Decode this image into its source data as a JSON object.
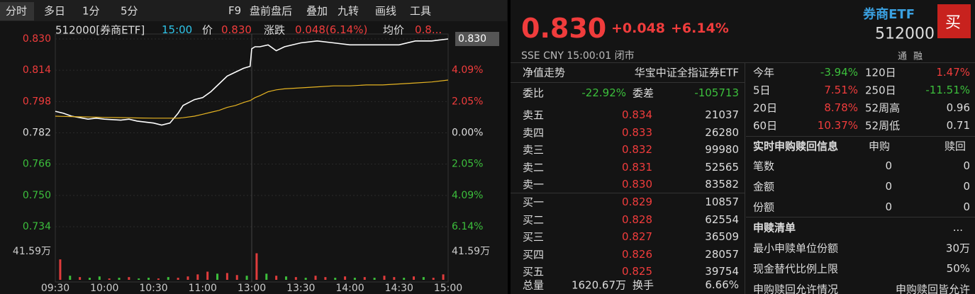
{
  "toolbar": {
    "tabs": [
      "分时",
      "多日",
      "1分",
      "5分"
    ],
    "tools": [
      "F9",
      "盘前盘后",
      "叠加",
      "九转",
      "画线",
      "工具"
    ]
  },
  "legend": {
    "code": "512000[券商ETF]",
    "time": "15:00",
    "price_label": "价",
    "price": "0.830",
    "change_label": "涨跌",
    "change": "0.048(6.14%)",
    "avg_label": "均价",
    "avg": "0.8..."
  },
  "chart_data": {
    "type": "line",
    "last_price_tag": "0.830",
    "x": [
      0,
      5,
      10,
      20,
      25,
      30,
      40,
      45,
      50,
      60,
      65,
      70,
      75,
      78,
      85,
      90,
      95,
      100,
      105,
      110,
      115,
      119,
      120,
      122,
      125,
      130,
      135,
      140,
      150,
      160,
      170,
      180,
      190,
      200,
      210,
      220,
      230,
      240
    ],
    "series": [
      {
        "color": "#ffffff",
        "values": [
          0.793,
          0.792,
          0.7905,
          0.789,
          0.7895,
          0.789,
          0.7885,
          0.789,
          0.788,
          0.787,
          0.786,
          0.787,
          0.792,
          0.796,
          0.799,
          0.8,
          0.803,
          0.807,
          0.811,
          0.813,
          0.815,
          0.816,
          0.825,
          0.826,
          0.826,
          0.827,
          0.824,
          0.826,
          0.828,
          0.829,
          0.828,
          0.827,
          0.827,
          0.827,
          0.827,
          0.829,
          0.829,
          0.83
        ]
      },
      {
        "color": "#e6b422",
        "values": [
          0.7905,
          0.7904,
          0.7903,
          0.7901,
          0.79,
          0.7899,
          0.7898,
          0.7897,
          0.7896,
          0.7895,
          0.7895,
          0.7895,
          0.7895,
          0.7897,
          0.7905,
          0.7915,
          0.7925,
          0.7935,
          0.795,
          0.796,
          0.7975,
          0.7985,
          0.799,
          0.8,
          0.801,
          0.803,
          0.804,
          0.8045,
          0.805,
          0.8055,
          0.806,
          0.806,
          0.8065,
          0.8065,
          0.807,
          0.8075,
          0.808,
          0.809
        ]
      }
    ],
    "xlim": [
      0,
      240
    ],
    "xticks": [
      {
        "value": 0,
        "label": "09:30"
      },
      {
        "value": 30,
        "label": "10:00"
      },
      {
        "value": 60,
        "label": "10:30"
      },
      {
        "value": 90,
        "label": "11:00"
      },
      {
        "value": 120,
        "label": "13:00"
      },
      {
        "value": 150,
        "label": "13:30"
      },
      {
        "value": 180,
        "label": "14:00"
      },
      {
        "value": 210,
        "label": "14:30"
      },
      {
        "value": 240,
        "label": "15:00"
      }
    ],
    "ylim": [
      0.734,
      0.83
    ],
    "yticks": [
      {
        "value": 0.83,
        "label": "0.830"
      },
      0.814,
      0.798,
      0.782,
      0.766,
      {
        "value": 0.75,
        "label": "0.750"
      },
      0.734
    ],
    "y2lim": [
      -6.14,
      6.14
    ],
    "y2ticks": [
      {
        "value": 4.09,
        "label": "4.09%"
      },
      {
        "value": 2.05,
        "label": "2.05%"
      },
      {
        "value": 0,
        "label": "0.00%"
      },
      {
        "value": -2.05,
        "label": "2.05%"
      },
      {
        "value": -4.09,
        "label": "4.09%"
      },
      {
        "value": -6.14,
        "label": "6.14%"
      }
    ],
    "volume": {
      "ylim": [
        0,
        41.59
      ],
      "yticks": [
        {
          "value": 41.59,
          "label": "41.59万"
        }
      ],
      "values": [
        30,
        6,
        4,
        3,
        5,
        2,
        3,
        4,
        2,
        3,
        2,
        4,
        3,
        5,
        8,
        12,
        9,
        10,
        7,
        6,
        39,
        9,
        6,
        5,
        4,
        3,
        6,
        4,
        3,
        5,
        3,
        4,
        3,
        6,
        4,
        3,
        5,
        4,
        3,
        8
      ],
      "colors": [
        "#e03c3c",
        "#3cbf3c",
        "#e03c3c",
        "#3cbf3c",
        "#3cbf3c",
        "#e03c3c",
        "#3cbf3c",
        "#e03c3c",
        "#3cbf3c",
        "#3cbf3c",
        "#e03c3c",
        "#3cbf3c",
        "#e03c3c",
        "#e03c3c",
        "#e03c3c",
        "#e03c3c",
        "#3cbf3c",
        "#e03c3c",
        "#e03c3c",
        "#3cbf3c",
        "#e03c3c",
        "#3cbf3c",
        "#e03c3c",
        "#3cbf3c",
        "#e03c3c",
        "#3cbf3c",
        "#e03c3c",
        "#e03c3c",
        "#3cbf3c",
        "#e03c3c",
        "#3cbf3c",
        "#e03c3c",
        "#3cbf3c",
        "#e03c3c",
        "#e03c3c",
        "#3cbf3c",
        "#e03c3c",
        "#3cbf3c",
        "#e03c3c",
        "#e03c3c"
      ]
    }
  },
  "quote": {
    "price": "0.830",
    "change": "+0.048",
    "pct": "+6.14%",
    "name": "券商ETF",
    "code": "512000",
    "buy_button": "买",
    "market": "SSE CNY 15:00:01 闭市",
    "tags": [
      "通",
      "融"
    ]
  },
  "book": {
    "nav_label": "净值走势",
    "nav_name": "华宝中证全指证券ETF",
    "ratio_label": "委比",
    "ratio": "-22.92%",
    "diff_label": "委差",
    "diff": "-105713",
    "sell": [
      [
        "卖五",
        "0.834",
        "21037"
      ],
      [
        "卖四",
        "0.833",
        "26280"
      ],
      [
        "卖三",
        "0.832",
        "99980"
      ],
      [
        "卖二",
        "0.831",
        "52565"
      ],
      [
        "卖一",
        "0.830",
        "83582"
      ]
    ],
    "buy": [
      [
        "买一",
        "0.829",
        "10857"
      ],
      [
        "买二",
        "0.828",
        "62554"
      ],
      [
        "买三",
        "0.827",
        "36509"
      ],
      [
        "买四",
        "0.826",
        "28057"
      ],
      [
        "买五",
        "0.825",
        "39754"
      ]
    ],
    "total_label": "总量",
    "total": "1620.67万",
    "turnover_label": "换手",
    "turnover": "6.66%"
  },
  "stats": [
    [
      "今年",
      "-3.94%",
      "120日",
      "1.47%"
    ],
    [
      "5日",
      "7.51%",
      "250日",
      "-11.51%"
    ],
    [
      "20日",
      "8.78%",
      "52周高",
      "0.96"
    ],
    [
      "60日",
      "10.37%",
      "52周低",
      "0.71"
    ]
  ],
  "creation": {
    "title": "实时申购赎回信息",
    "headers": [
      "申购",
      "赎回"
    ],
    "rows": [
      [
        "笔数",
        "0",
        "0"
      ],
      [
        "金额",
        "0",
        "0"
      ],
      [
        "份额",
        "0",
        "0"
      ]
    ]
  },
  "list": {
    "title": "申赎清单",
    "more": "...",
    "rows": [
      [
        "最小申赎单位份额",
        "30万"
      ],
      [
        "现金替代比例上限",
        "50%"
      ],
      [
        "申购赎回允许情况",
        "申购赎回皆允许"
      ]
    ]
  }
}
